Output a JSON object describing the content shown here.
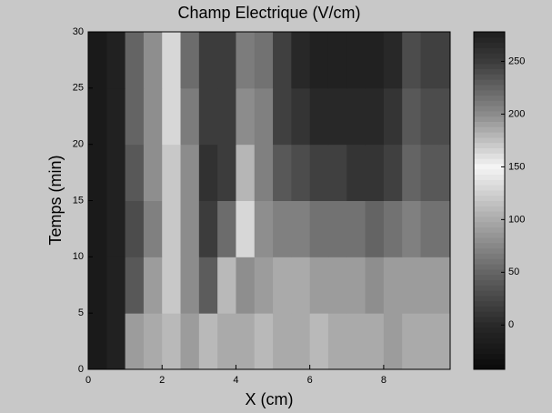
{
  "chart_data": {
    "type": "heatmap",
    "title": "Champ Electrique (V/cm)",
    "x_label": "X (cm)",
    "y_label": "Temps (min)",
    "x": [
      0.25,
      0.75,
      1.25,
      1.75,
      2.25,
      2.75,
      3.25,
      3.75,
      4.25,
      4.75,
      5.25,
      5.75,
      6.25,
      6.75,
      7.25,
      7.75,
      8.25,
      8.75,
      9.25,
      9.75
    ],
    "y": [
      2.5,
      7.5,
      12.5,
      17.5,
      22.5,
      27.5
    ],
    "values": [
      [
        -20,
        -10,
        90,
        100,
        110,
        90,
        110,
        100,
        100,
        110,
        100,
        100,
        110,
        100,
        100,
        100,
        90,
        100,
        100,
        100
      ],
      [
        -20,
        -10,
        40,
        90,
        120,
        200,
        230,
        110,
        80,
        90,
        100,
        100,
        90,
        90,
        90,
        80,
        90,
        90,
        90,
        90
      ],
      [
        -20,
        -10,
        30,
        70,
        120,
        200,
        250,
        220,
        130,
        80,
        70,
        70,
        60,
        60,
        60,
        50,
        60,
        70,
        60,
        60
      ],
      [
        -20,
        -10,
        40,
        80,
        120,
        200,
        260,
        250,
        180,
        70,
        40,
        30,
        20,
        20,
        10,
        10,
        20,
        50,
        40,
        40
      ],
      [
        -20,
        -10,
        50,
        80,
        130,
        210,
        250,
        250,
        200,
        70,
        20,
        10,
        0,
        0,
        0,
        0,
        10,
        40,
        30,
        30
      ],
      [
        -20,
        -10,
        50,
        80,
        130,
        220,
        250,
        250,
        210,
        60,
        20,
        0,
        -10,
        -10,
        -10,
        -10,
        0,
        30,
        20,
        20
      ]
    ],
    "xlim": [
      0,
      9.8
    ],
    "xticks": [
      0,
      2,
      4,
      6,
      8
    ],
    "ylim": [
      0,
      30
    ],
    "yticks": [
      0,
      5,
      10,
      15,
      20,
      25,
      30
    ],
    "clim": [
      -42,
      278
    ],
    "cticks": [
      0,
      50,
      100,
      150,
      200,
      250
    ],
    "colormap": [
      {
        "value": -42,
        "color": "#0a0a0a"
      },
      {
        "value": 0,
        "color": "#282828"
      },
      {
        "value": 50,
        "color": "#646464"
      },
      {
        "value": 100,
        "color": "#aaaaaa"
      },
      {
        "value": 150,
        "color": "#f5f5f5"
      },
      {
        "value": 200,
        "color": "#8c8c8c"
      },
      {
        "value": 250,
        "color": "#3c3c3c"
      },
      {
        "value": 278,
        "color": "#1e1e1e"
      }
    ]
  }
}
